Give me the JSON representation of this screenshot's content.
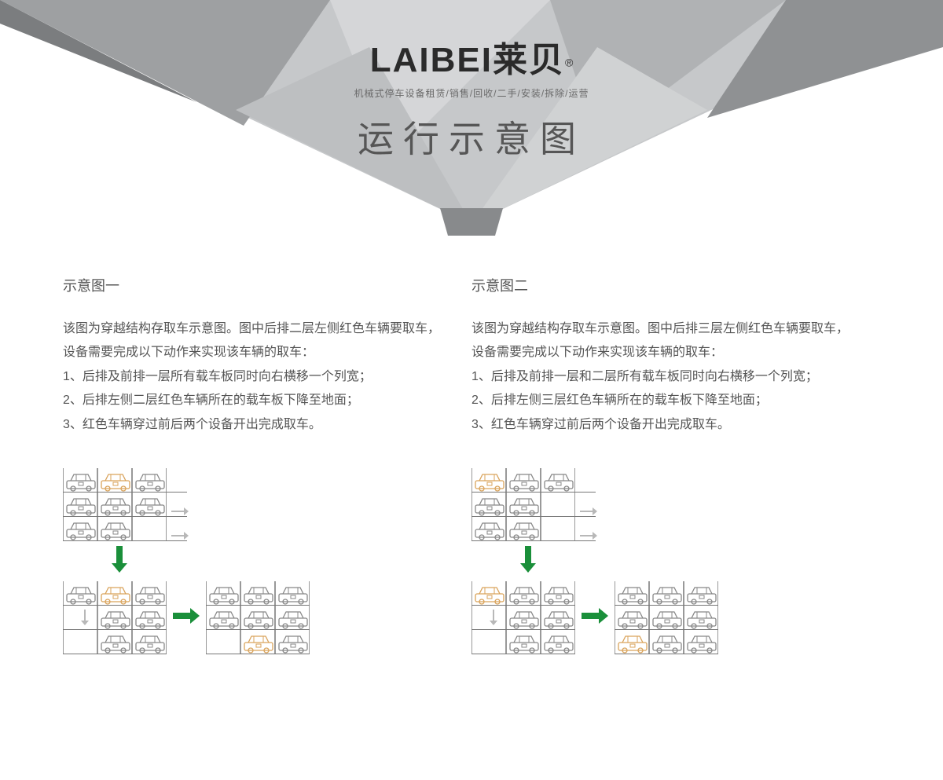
{
  "brand": {
    "name": "LAIBEI莱贝",
    "registered": "®",
    "tagline": "机械式停车设备租赁/销售/回收/二手/安装/拆除/运营",
    "title": "运行示意图"
  },
  "colors": {
    "car_gray": "#888888",
    "car_highlight": "#d9a35b",
    "arrow_green": "#1a8f3a",
    "arrow_gray": "#b8b8b8",
    "text": "#555555",
    "bg": "#ffffff",
    "tri_light": "#d8d9da",
    "tri_mid": "#b7b8ba",
    "tri_dark": "#989a9c",
    "tri_darker": "#7e8082"
  },
  "columns": [
    {
      "title": "示意图一",
      "paragraphs": [
        "该图为穿越结构存取车示意图。图中后排二层左侧红色车辆要取车，设备需要完成以下动作来实现该车辆的取车：",
        "1、后排及前排一层所有载车板同时向右横移一个列宽；",
        "2、后排左侧二层红色车辆所在的载车板下降至地面；",
        "3、红色车辆穿过前后两个设备开出完成取车。"
      ],
      "stages": [
        {
          "levels": [
            [
              {
                "c": "g"
              },
              {
                "c": "h"
              },
              {
                "c": "g"
              }
            ],
            [
              {
                "c": "g"
              },
              {
                "c": "g"
              },
              {
                "c": "g"
              }
            ],
            [
              {
                "c": "g"
              },
              {
                "c": "g"
              },
              {
                "c": "e"
              }
            ]
          ],
          "side_arrows_rows": [
            1,
            2
          ],
          "side_arrow_color": "gray"
        },
        {
          "levels": [
            [
              {
                "c": "g"
              },
              {
                "c": "h"
              },
              {
                "c": "g"
              }
            ],
            [
              {
                "c": "e"
              },
              {
                "c": "g"
              },
              {
                "c": "g"
              }
            ],
            [
              {
                "c": "e"
              },
              {
                "c": "g"
              },
              {
                "c": "g"
              }
            ]
          ],
          "down_arrow_slot": 0
        },
        {
          "levels": [
            [
              {
                "c": "g"
              },
              {
                "c": "g"
              },
              {
                "c": "g"
              }
            ],
            [
              {
                "c": "g"
              },
              {
                "c": "g"
              },
              {
                "c": "g"
              }
            ],
            [
              {
                "c": "e"
              },
              {
                "c": "h"
              },
              {
                "c": "g"
              }
            ]
          ]
        }
      ]
    },
    {
      "title": "示意图二",
      "paragraphs": [
        "该图为穿越结构存取车示意图。图中后排三层左侧红色车辆要取车，设备需要完成以下动作来实现该车辆的取车：",
        "1、后排及前排一层和二层所有载车板同时向右横移一个列宽；",
        "2、后排左侧三层红色车辆所在的载车板下降至地面；",
        "3、红色车辆穿过前后两个设备开出完成取车。"
      ],
      "stages": [
        {
          "levels": [
            [
              {
                "c": "h"
              },
              {
                "c": "g"
              },
              {
                "c": "g"
              }
            ],
            [
              {
                "c": "g"
              },
              {
                "c": "g"
              },
              {
                "c": "e"
              }
            ],
            [
              {
                "c": "g"
              },
              {
                "c": "g"
              },
              {
                "c": "e"
              }
            ]
          ],
          "side_arrows_rows": [
            1,
            2
          ],
          "side_arrow_color": "gray"
        },
        {
          "levels": [
            [
              {
                "c": "h"
              },
              {
                "c": "g"
              },
              {
                "c": "g"
              }
            ],
            [
              {
                "c": "e"
              },
              {
                "c": "g"
              },
              {
                "c": "g"
              }
            ],
            [
              {
                "c": "e"
              },
              {
                "c": "g"
              },
              {
                "c": "g"
              }
            ]
          ],
          "down_arrow_slot": 0
        },
        {
          "levels": [
            [
              {
                "c": "g"
              },
              {
                "c": "g"
              },
              {
                "c": "g"
              }
            ],
            [
              {
                "c": "g"
              },
              {
                "c": "g"
              },
              {
                "c": "g"
              }
            ],
            [
              {
                "c": "h"
              },
              {
                "c": "g"
              },
              {
                "c": "g"
              }
            ]
          ]
        }
      ]
    }
  ]
}
